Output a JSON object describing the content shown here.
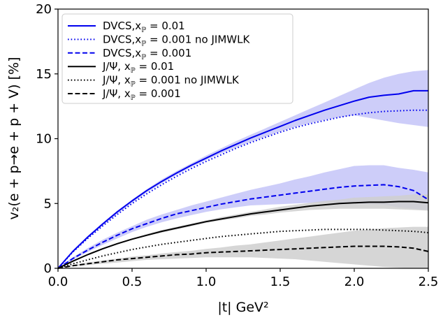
{
  "chart_data": {
    "type": "line",
    "xlabel": "|t| GeV²",
    "ylabel": "v₂(e + p→e + p + V) [%]",
    "xlim": [
      0.0,
      2.5
    ],
    "ylim": [
      0,
      20
    ],
    "xticks": [
      "0.0",
      "0.5",
      "1.0",
      "1.5",
      "2.0",
      "2.5"
    ],
    "yticks": [
      "0",
      "5",
      "10",
      "15",
      "20"
    ],
    "grid": false,
    "legend_position": "top-left",
    "series": [
      {
        "name": "DVCS,x_P = 0.01",
        "legend_main": "DVCS,x",
        "legend_sub": "ℙ",
        "legend_tail": " = 0.01",
        "color": "#0000ee",
        "dash": "solid",
        "band_color": "#c4c4f8",
        "x": [
          0.0,
          0.1,
          0.2,
          0.3,
          0.4,
          0.5,
          0.6,
          0.7,
          0.8,
          0.9,
          1.0,
          1.1,
          1.2,
          1.3,
          1.4,
          1.5,
          1.6,
          1.7,
          1.8,
          1.9,
          2.0,
          2.1,
          2.2,
          2.3,
          2.4,
          2.5
        ],
        "y": [
          0.0,
          1.3,
          2.4,
          3.4,
          4.35,
          5.2,
          6.0,
          6.7,
          7.35,
          7.95,
          8.5,
          9.05,
          9.55,
          10.05,
          10.5,
          10.95,
          11.4,
          11.8,
          12.2,
          12.55,
          12.9,
          13.2,
          13.35,
          13.45,
          13.7,
          13.7
        ],
        "band_upper": [
          0.0,
          1.35,
          2.5,
          3.5,
          4.45,
          5.3,
          6.1,
          6.85,
          7.5,
          8.1,
          8.7,
          9.25,
          9.8,
          10.3,
          10.8,
          11.3,
          11.8,
          12.3,
          12.8,
          13.3,
          13.8,
          14.3,
          14.7,
          15.0,
          15.2,
          15.3
        ],
        "band_lower": [
          0.0,
          1.25,
          2.3,
          3.3,
          4.2,
          5.05,
          5.85,
          6.55,
          7.2,
          7.8,
          8.35,
          8.85,
          9.3,
          9.75,
          10.15,
          10.55,
          10.9,
          11.2,
          11.45,
          11.65,
          11.8,
          11.6,
          11.4,
          11.2,
          11.05,
          10.9
        ]
      },
      {
        "name": "DVCS,x_P = 0.001 no JIMWLK",
        "legend_main": "DVCS,x",
        "legend_sub": "ℙ",
        "legend_tail": " = 0.001 no JIMWLK",
        "color": "#0000ee",
        "dash": "dotted",
        "x": [
          0.0,
          0.1,
          0.2,
          0.3,
          0.4,
          0.5,
          0.6,
          0.7,
          0.8,
          0.9,
          1.0,
          1.1,
          1.2,
          1.3,
          1.4,
          1.5,
          1.6,
          1.7,
          1.8,
          1.9,
          2.0,
          2.1,
          2.2,
          2.3,
          2.4,
          2.5
        ],
        "y": [
          0.0,
          1.25,
          2.3,
          3.25,
          4.15,
          5.0,
          5.75,
          6.45,
          7.1,
          7.7,
          8.25,
          8.75,
          9.25,
          9.7,
          10.1,
          10.5,
          10.85,
          11.15,
          11.4,
          11.65,
          11.85,
          12.0,
          12.1,
          12.15,
          12.2,
          12.2
        ]
      },
      {
        "name": "DVCS,x_P = 0.001",
        "legend_main": "DVCS,x",
        "legend_sub": "ℙ",
        "legend_tail": " = 0.001",
        "color": "#0000ee",
        "dash": "dashed",
        "band_color": "#c4c4f8",
        "x": [
          0.0,
          0.1,
          0.2,
          0.3,
          0.4,
          0.5,
          0.6,
          0.7,
          0.8,
          0.9,
          1.0,
          1.1,
          1.2,
          1.3,
          1.4,
          1.5,
          1.6,
          1.7,
          1.8,
          1.9,
          2.0,
          2.1,
          2.2,
          2.3,
          2.4,
          2.5
        ],
        "y": [
          0.0,
          0.75,
          1.4,
          2.0,
          2.55,
          3.05,
          3.45,
          3.85,
          4.2,
          4.45,
          4.7,
          4.95,
          5.15,
          5.35,
          5.5,
          5.65,
          5.8,
          5.95,
          6.1,
          6.25,
          6.35,
          6.4,
          6.45,
          6.3,
          6.0,
          5.3
        ],
        "band_upper": [
          0.0,
          0.85,
          1.55,
          2.2,
          2.75,
          3.25,
          3.75,
          4.15,
          4.5,
          4.85,
          5.15,
          5.45,
          5.75,
          6.05,
          6.3,
          6.55,
          6.85,
          7.1,
          7.4,
          7.65,
          7.9,
          7.95,
          7.95,
          7.75,
          7.6,
          7.4
        ],
        "band_lower": [
          0.0,
          0.65,
          1.25,
          1.8,
          2.3,
          2.8,
          3.2,
          3.55,
          3.85,
          4.1,
          4.35,
          4.55,
          4.7,
          4.85,
          4.9,
          4.95,
          5.0,
          5.05,
          5.05,
          5.05,
          5.0,
          4.95,
          4.9,
          4.7,
          4.6,
          4.5
        ]
      },
      {
        "name": "J/Ψ, x_P = 0.01",
        "legend_main": "J/Ψ, x",
        "legend_sub": "ℙ",
        "legend_tail": " = 0.01",
        "color": "#000000",
        "dash": "solid",
        "band_color": "#cfcfcf",
        "x": [
          0.0,
          0.1,
          0.2,
          0.3,
          0.4,
          0.5,
          0.6,
          0.7,
          0.8,
          0.9,
          1.0,
          1.1,
          1.2,
          1.3,
          1.4,
          1.5,
          1.6,
          1.7,
          1.8,
          1.9,
          2.0,
          2.1,
          2.2,
          2.3,
          2.4,
          2.5
        ],
        "y": [
          0.0,
          0.55,
          1.05,
          1.5,
          1.9,
          2.25,
          2.55,
          2.85,
          3.1,
          3.35,
          3.6,
          3.8,
          4.0,
          4.2,
          4.35,
          4.5,
          4.65,
          4.8,
          4.9,
          5.0,
          5.05,
          5.1,
          5.1,
          5.15,
          5.15,
          5.05
        ],
        "band_upper": [
          0.0,
          0.6,
          1.1,
          1.55,
          1.95,
          2.3,
          2.65,
          2.95,
          3.2,
          3.45,
          3.7,
          3.95,
          4.15,
          4.35,
          4.55,
          4.75,
          4.9,
          5.05,
          5.2,
          5.3,
          5.45,
          5.5,
          5.55,
          5.6,
          5.7,
          5.7
        ],
        "band_lower": [
          0.0,
          0.5,
          1.0,
          1.45,
          1.85,
          2.2,
          2.5,
          2.75,
          3.0,
          3.25,
          3.5,
          3.7,
          3.85,
          4.05,
          4.15,
          4.3,
          4.4,
          4.5,
          4.55,
          4.6,
          4.6,
          4.6,
          4.6,
          4.55,
          4.5,
          4.45
        ]
      },
      {
        "name": "J/Ψ, x_P = 0.001 no JIMWLK",
        "legend_main": "J/Ψ, x",
        "legend_sub": "ℙ",
        "legend_tail": " = 0.001 no JIMWLK",
        "color": "#000000",
        "dash": "dotted",
        "x": [
          0.0,
          0.1,
          0.2,
          0.3,
          0.4,
          0.5,
          0.6,
          0.7,
          0.8,
          0.9,
          1.0,
          1.1,
          1.2,
          1.3,
          1.4,
          1.5,
          1.6,
          1.7,
          1.8,
          1.9,
          2.0,
          2.1,
          2.2,
          2.3,
          2.4,
          2.5
        ],
        "y": [
          0.0,
          0.35,
          0.65,
          0.95,
          1.2,
          1.45,
          1.65,
          1.85,
          2.0,
          2.15,
          2.3,
          2.45,
          2.55,
          2.65,
          2.75,
          2.85,
          2.9,
          2.95,
          3.0,
          3.0,
          3.0,
          3.0,
          2.95,
          2.9,
          2.85,
          2.75
        ]
      },
      {
        "name": "J/Ψ, x_P = 0.001",
        "legend_main": "J/Ψ, x",
        "legend_sub": "ℙ",
        "legend_tail": " = 0.001",
        "color": "#000000",
        "dash": "dashed",
        "band_color": "#cfcfcf",
        "x": [
          0.0,
          0.1,
          0.2,
          0.3,
          0.4,
          0.5,
          0.6,
          0.7,
          0.8,
          0.9,
          1.0,
          1.1,
          1.2,
          1.3,
          1.4,
          1.5,
          1.6,
          1.7,
          1.8,
          1.9,
          2.0,
          2.1,
          2.2,
          2.3,
          2.4,
          2.5
        ],
        "y": [
          0.0,
          0.2,
          0.35,
          0.5,
          0.65,
          0.75,
          0.85,
          0.95,
          1.05,
          1.1,
          1.2,
          1.25,
          1.3,
          1.35,
          1.4,
          1.45,
          1.5,
          1.55,
          1.6,
          1.65,
          1.7,
          1.7,
          1.7,
          1.65,
          1.55,
          1.3
        ],
        "band_upper": [
          0.0,
          0.25,
          0.45,
          0.6,
          0.75,
          0.9,
          1.0,
          1.15,
          1.25,
          1.35,
          1.5,
          1.6,
          1.75,
          1.85,
          2.0,
          2.15,
          2.3,
          2.45,
          2.6,
          2.75,
          2.9,
          3.0,
          3.1,
          3.15,
          3.2,
          3.2
        ],
        "band_lower": [
          0.0,
          0.15,
          0.25,
          0.35,
          0.45,
          0.55,
          0.65,
          0.7,
          0.75,
          0.8,
          0.85,
          0.85,
          0.85,
          0.85,
          0.8,
          0.75,
          0.7,
          0.6,
          0.5,
          0.4,
          0.3,
          0.2,
          0.1,
          0.05,
          0.0,
          0.0
        ]
      }
    ]
  }
}
